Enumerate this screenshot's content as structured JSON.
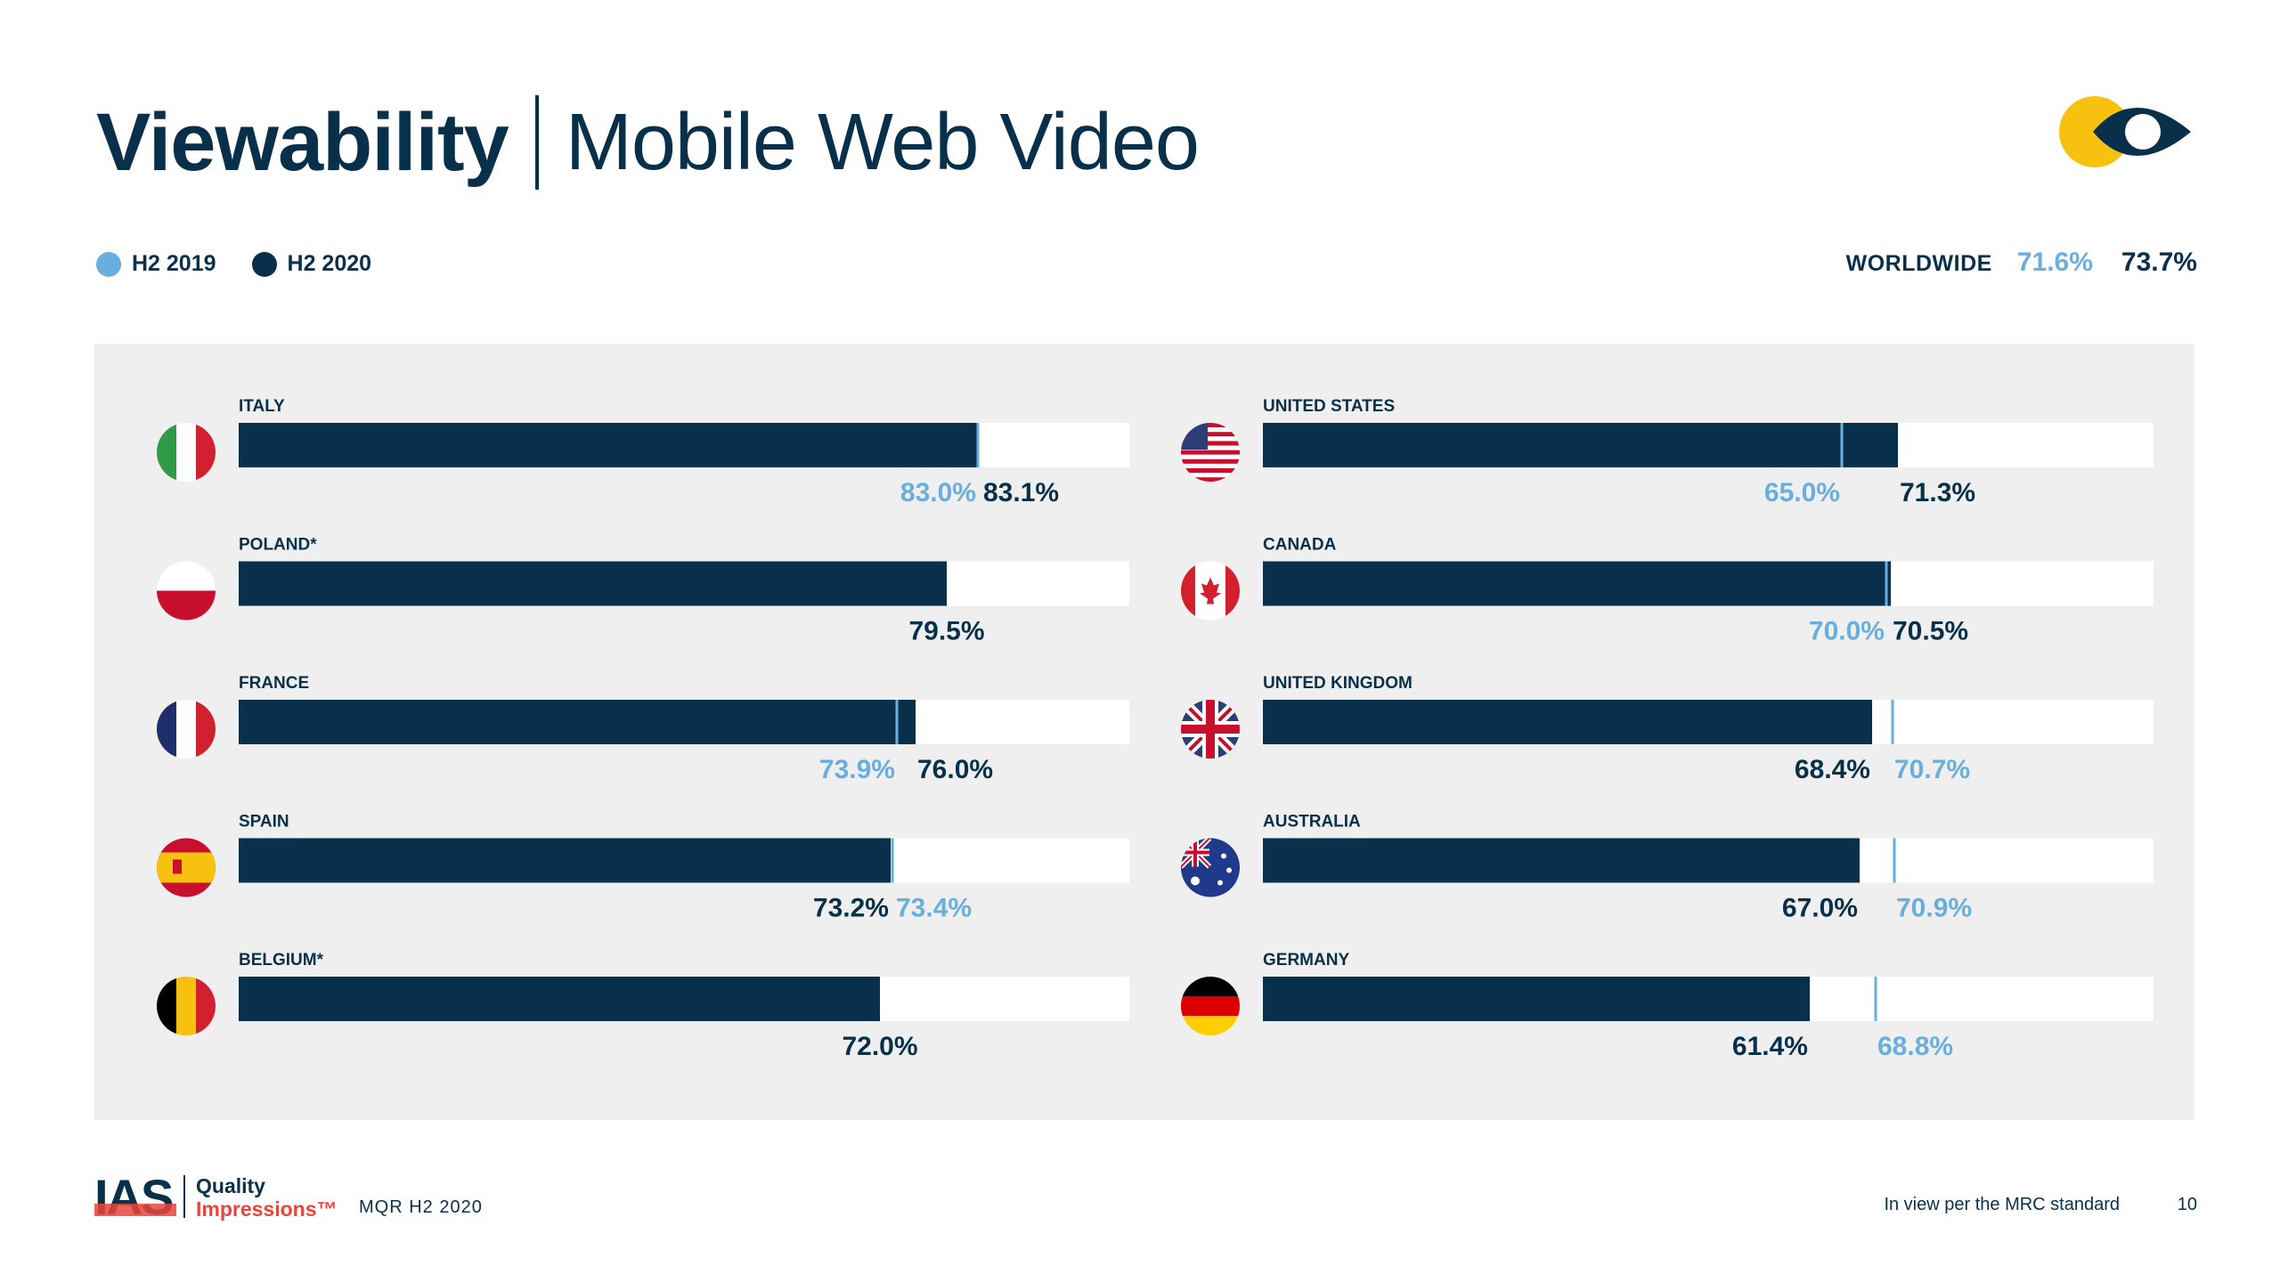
{
  "title": {
    "bold": "Viewability",
    "light": "Mobile Web Video"
  },
  "legend": [
    {
      "label": "H2 2019",
      "color": "#6aaede"
    },
    {
      "label": "H2 2020",
      "color": "#08304a"
    }
  ],
  "worldwide": {
    "label": "WORLDWIDE",
    "h2_2019": "71.6%",
    "h2_2020": "73.7%"
  },
  "colors": {
    "h2_2019": "#6aaede",
    "h2_2020": "#08304a",
    "panel": "#efefef",
    "track": "#ffffff"
  },
  "chart_data": {
    "type": "bar",
    "orientation": "horizontal",
    "xlim": [
      0,
      100
    ],
    "series_names": [
      "H2 2019",
      "H2 2020"
    ],
    "columns": [
      [
        {
          "country": "ITALY",
          "flag": "italy-flag-icon",
          "h2_2020": 83.1,
          "h2_2019": 83.0
        },
        {
          "country": "POLAND*",
          "flag": "poland-flag-icon",
          "h2_2020": 79.5,
          "h2_2019": null
        },
        {
          "country": "FRANCE",
          "flag": "france-flag-icon",
          "h2_2020": 76.0,
          "h2_2019": 73.9
        },
        {
          "country": "SPAIN",
          "flag": "spain-flag-icon",
          "h2_2020": 73.2,
          "h2_2019": 73.4
        },
        {
          "country": "BELGIUM*",
          "flag": "belgium-flag-icon",
          "h2_2020": 72.0,
          "h2_2019": null
        }
      ],
      [
        {
          "country": "UNITED STATES",
          "flag": "us-flag-icon",
          "h2_2020": 71.3,
          "h2_2019": 65.0
        },
        {
          "country": "CANADA",
          "flag": "canada-flag-icon",
          "h2_2020": 70.5,
          "h2_2019": 70.0
        },
        {
          "country": "UNITED KINGDOM",
          "flag": "uk-flag-icon",
          "h2_2020": 68.4,
          "h2_2019": 70.7
        },
        {
          "country": "AUSTRALIA",
          "flag": "australia-flag-icon",
          "h2_2020": 67.0,
          "h2_2019": 70.9
        },
        {
          "country": "GERMANY",
          "flag": "germany-flag-icon",
          "h2_2020": 61.4,
          "h2_2019": 68.8
        }
      ]
    ]
  },
  "footer": {
    "brand": "IAS",
    "product_line1": "Quality",
    "product_line2": "Impressions™",
    "report": "MQR H2 2020",
    "note": "In view per the MRC standard",
    "page": "10"
  }
}
